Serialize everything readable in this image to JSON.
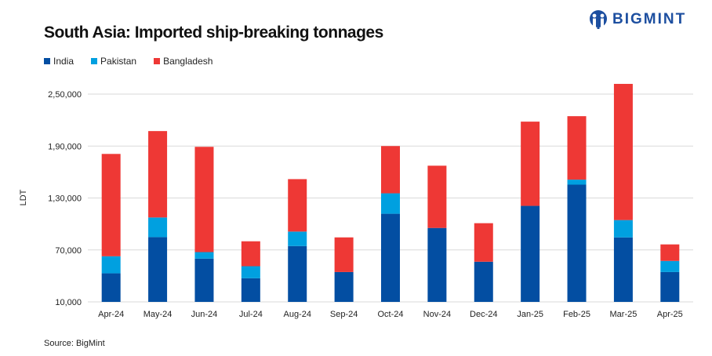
{
  "brand": {
    "name": "BIGMINT",
    "color": "#1d4fa0"
  },
  "source": "Source: BigMint",
  "chart_data": {
    "type": "bar",
    "stacked": true,
    "title": "South Asia: Imported ship-breaking tonnages",
    "xlabel": "",
    "ylabel": "LDT",
    "ylim": [
      10000,
      250000
    ],
    "yticks": [
      10000,
      70000,
      130000,
      190000,
      250000
    ],
    "ytick_labels": [
      "10,000",
      "70,000",
      "1,30,000",
      "1,90,000",
      "2,50,000"
    ],
    "grid": true,
    "legend_position": "top-left",
    "categories": [
      "Apr-24",
      "May-24",
      "Jun-24",
      "Jul-24",
      "Aug-24",
      "Sep-24",
      "Oct-24",
      "Nov-24",
      "Dec-24",
      "Jan-25",
      "Feb-25",
      "Mar-25",
      "Apr-25"
    ],
    "series": [
      {
        "name": "India",
        "color": "#034ea2",
        "values": [
          43000,
          84800,
          60000,
          37300,
          74500,
          44500,
          111800,
          95400,
          56400,
          120900,
          145400,
          84500,
          44500
        ]
      },
      {
        "name": "Pakistan",
        "color": "#00a0e0",
        "values": [
          19700,
          22700,
          7500,
          13900,
          16700,
          0,
          23600,
          0,
          0,
          0,
          5800,
          20000,
          12800
        ]
      },
      {
        "name": "Bangladesh",
        "color": "#ee3835",
        "values": [
          118200,
          99800,
          121600,
          28800,
          60600,
          40000,
          54600,
          71900,
          44500,
          97300,
          73300,
          157300,
          19100
        ]
      }
    ]
  }
}
